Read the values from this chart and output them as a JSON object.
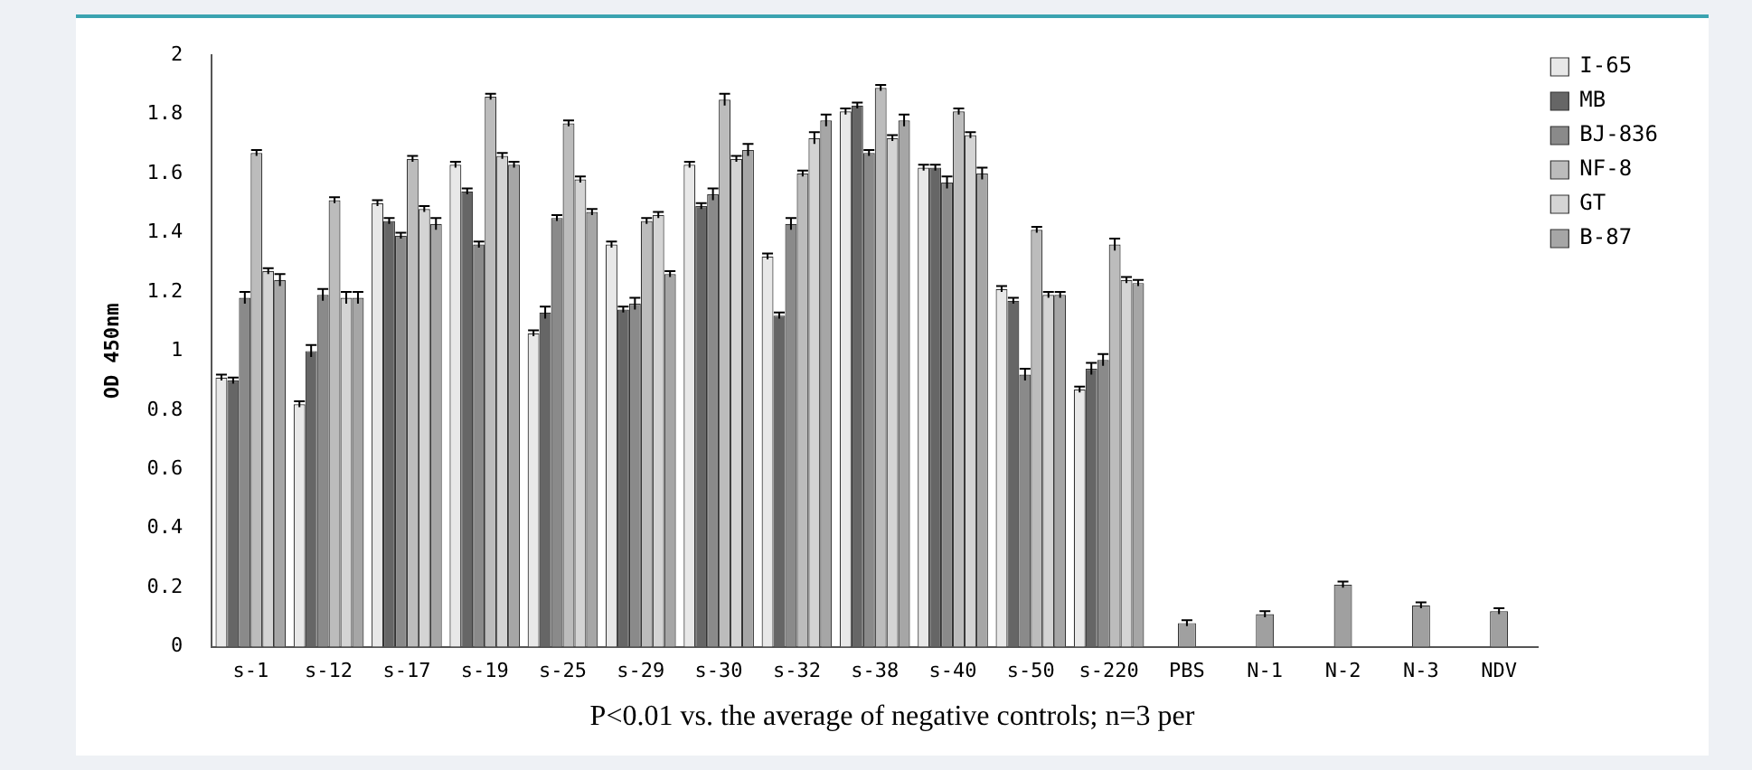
{
  "chart_data": {
    "type": "bar",
    "ylabel": "OD 450nm",
    "annotations": [
      "P<0.01 vs. the average of negative controls; n=3 per"
    ],
    "categories": [
      "s-1",
      "s-12",
      "s-17",
      "s-19",
      "s-25",
      "s-29",
      "s-30",
      "s-32",
      "s-38",
      "s-40",
      "s-50",
      "s-220",
      "PBS",
      "N-1",
      "N-2",
      "N-3",
      "NDV"
    ],
    "ylim": [
      0,
      2
    ],
    "yticks": [
      0,
      0.2,
      0.4,
      0.6,
      0.8,
      1,
      1.2,
      1.4,
      1.6,
      1.8,
      2
    ],
    "grid": false,
    "legend": "top right",
    "series": [
      {
        "name": "I-65",
        "color": "#e8e8e8",
        "values": [
          0.91,
          0.82,
          1.5,
          1.63,
          1.06,
          1.36,
          1.63,
          1.32,
          1.81,
          1.62,
          1.21,
          0.87,
          null,
          null,
          null,
          null,
          null
        ],
        "errors": [
          0.01,
          0.01,
          0.01,
          0.01,
          0.01,
          0.01,
          0.01,
          0.01,
          0.01,
          0.01,
          0.01,
          0.01,
          null,
          null,
          null,
          null,
          null
        ]
      },
      {
        "name": "MB",
        "color": "#666666",
        "values": [
          0.9,
          1.0,
          1.44,
          1.54,
          1.13,
          1.14,
          1.49,
          1.12,
          1.83,
          1.62,
          1.17,
          0.94,
          null,
          null,
          null,
          null,
          null
        ],
        "errors": [
          0.01,
          0.02,
          0.01,
          0.01,
          0.02,
          0.01,
          0.01,
          0.01,
          0.01,
          0.01,
          0.01,
          0.02,
          null,
          null,
          null,
          null,
          null
        ]
      },
      {
        "name": "BJ-836",
        "color": "#8a8a8a",
        "values": [
          1.18,
          1.19,
          1.39,
          1.36,
          1.45,
          1.16,
          1.53,
          1.43,
          1.67,
          1.57,
          0.92,
          0.97,
          null,
          null,
          null,
          null,
          null
        ],
        "errors": [
          0.02,
          0.02,
          0.01,
          0.01,
          0.01,
          0.02,
          0.02,
          0.02,
          0.01,
          0.02,
          0.02,
          0.02,
          null,
          null,
          null,
          null,
          null
        ]
      },
      {
        "name": "NF-8",
        "color": "#bcbcbc",
        "values": [
          1.67,
          1.51,
          1.65,
          1.86,
          1.77,
          1.44,
          1.85,
          1.6,
          1.89,
          1.81,
          1.41,
          1.36,
          null,
          null,
          null,
          null,
          null
        ],
        "errors": [
          0.01,
          0.01,
          0.01,
          0.01,
          0.01,
          0.01,
          0.02,
          0.01,
          0.01,
          0.01,
          0.01,
          0.02,
          null,
          null,
          null,
          null,
          null
        ]
      },
      {
        "name": "GT",
        "color": "#d4d4d4",
        "values": [
          1.27,
          1.18,
          1.48,
          1.66,
          1.58,
          1.46,
          1.65,
          1.72,
          1.72,
          1.73,
          1.19,
          1.24,
          null,
          null,
          null,
          null,
          null
        ],
        "errors": [
          0.01,
          0.02,
          0.01,
          0.01,
          0.01,
          0.01,
          0.01,
          0.02,
          0.01,
          0.01,
          0.01,
          0.01,
          null,
          null,
          null,
          null,
          null
        ]
      },
      {
        "name": "B-87",
        "color": "#a6a6a6",
        "values": [
          1.24,
          1.18,
          1.43,
          1.63,
          1.47,
          1.26,
          1.68,
          1.78,
          1.78,
          1.6,
          1.19,
          1.23,
          null,
          null,
          null,
          null,
          null
        ],
        "errors": [
          0.02,
          0.02,
          0.02,
          0.01,
          0.01,
          0.01,
          0.02,
          0.02,
          0.02,
          0.02,
          0.01,
          0.01,
          null,
          null,
          null,
          null,
          null
        ]
      },
      {
        "color": "#a0a0a0",
        "values": [
          null,
          null,
          null,
          null,
          null,
          null,
          null,
          null,
          null,
          null,
          null,
          null,
          0.08,
          0.11,
          0.21,
          0.14,
          0.12
        ],
        "errors": [
          null,
          null,
          null,
          null,
          null,
          null,
          null,
          null,
          null,
          null,
          null,
          null,
          0.01,
          0.01,
          0.01,
          0.01,
          0.01
        ]
      }
    ]
  }
}
